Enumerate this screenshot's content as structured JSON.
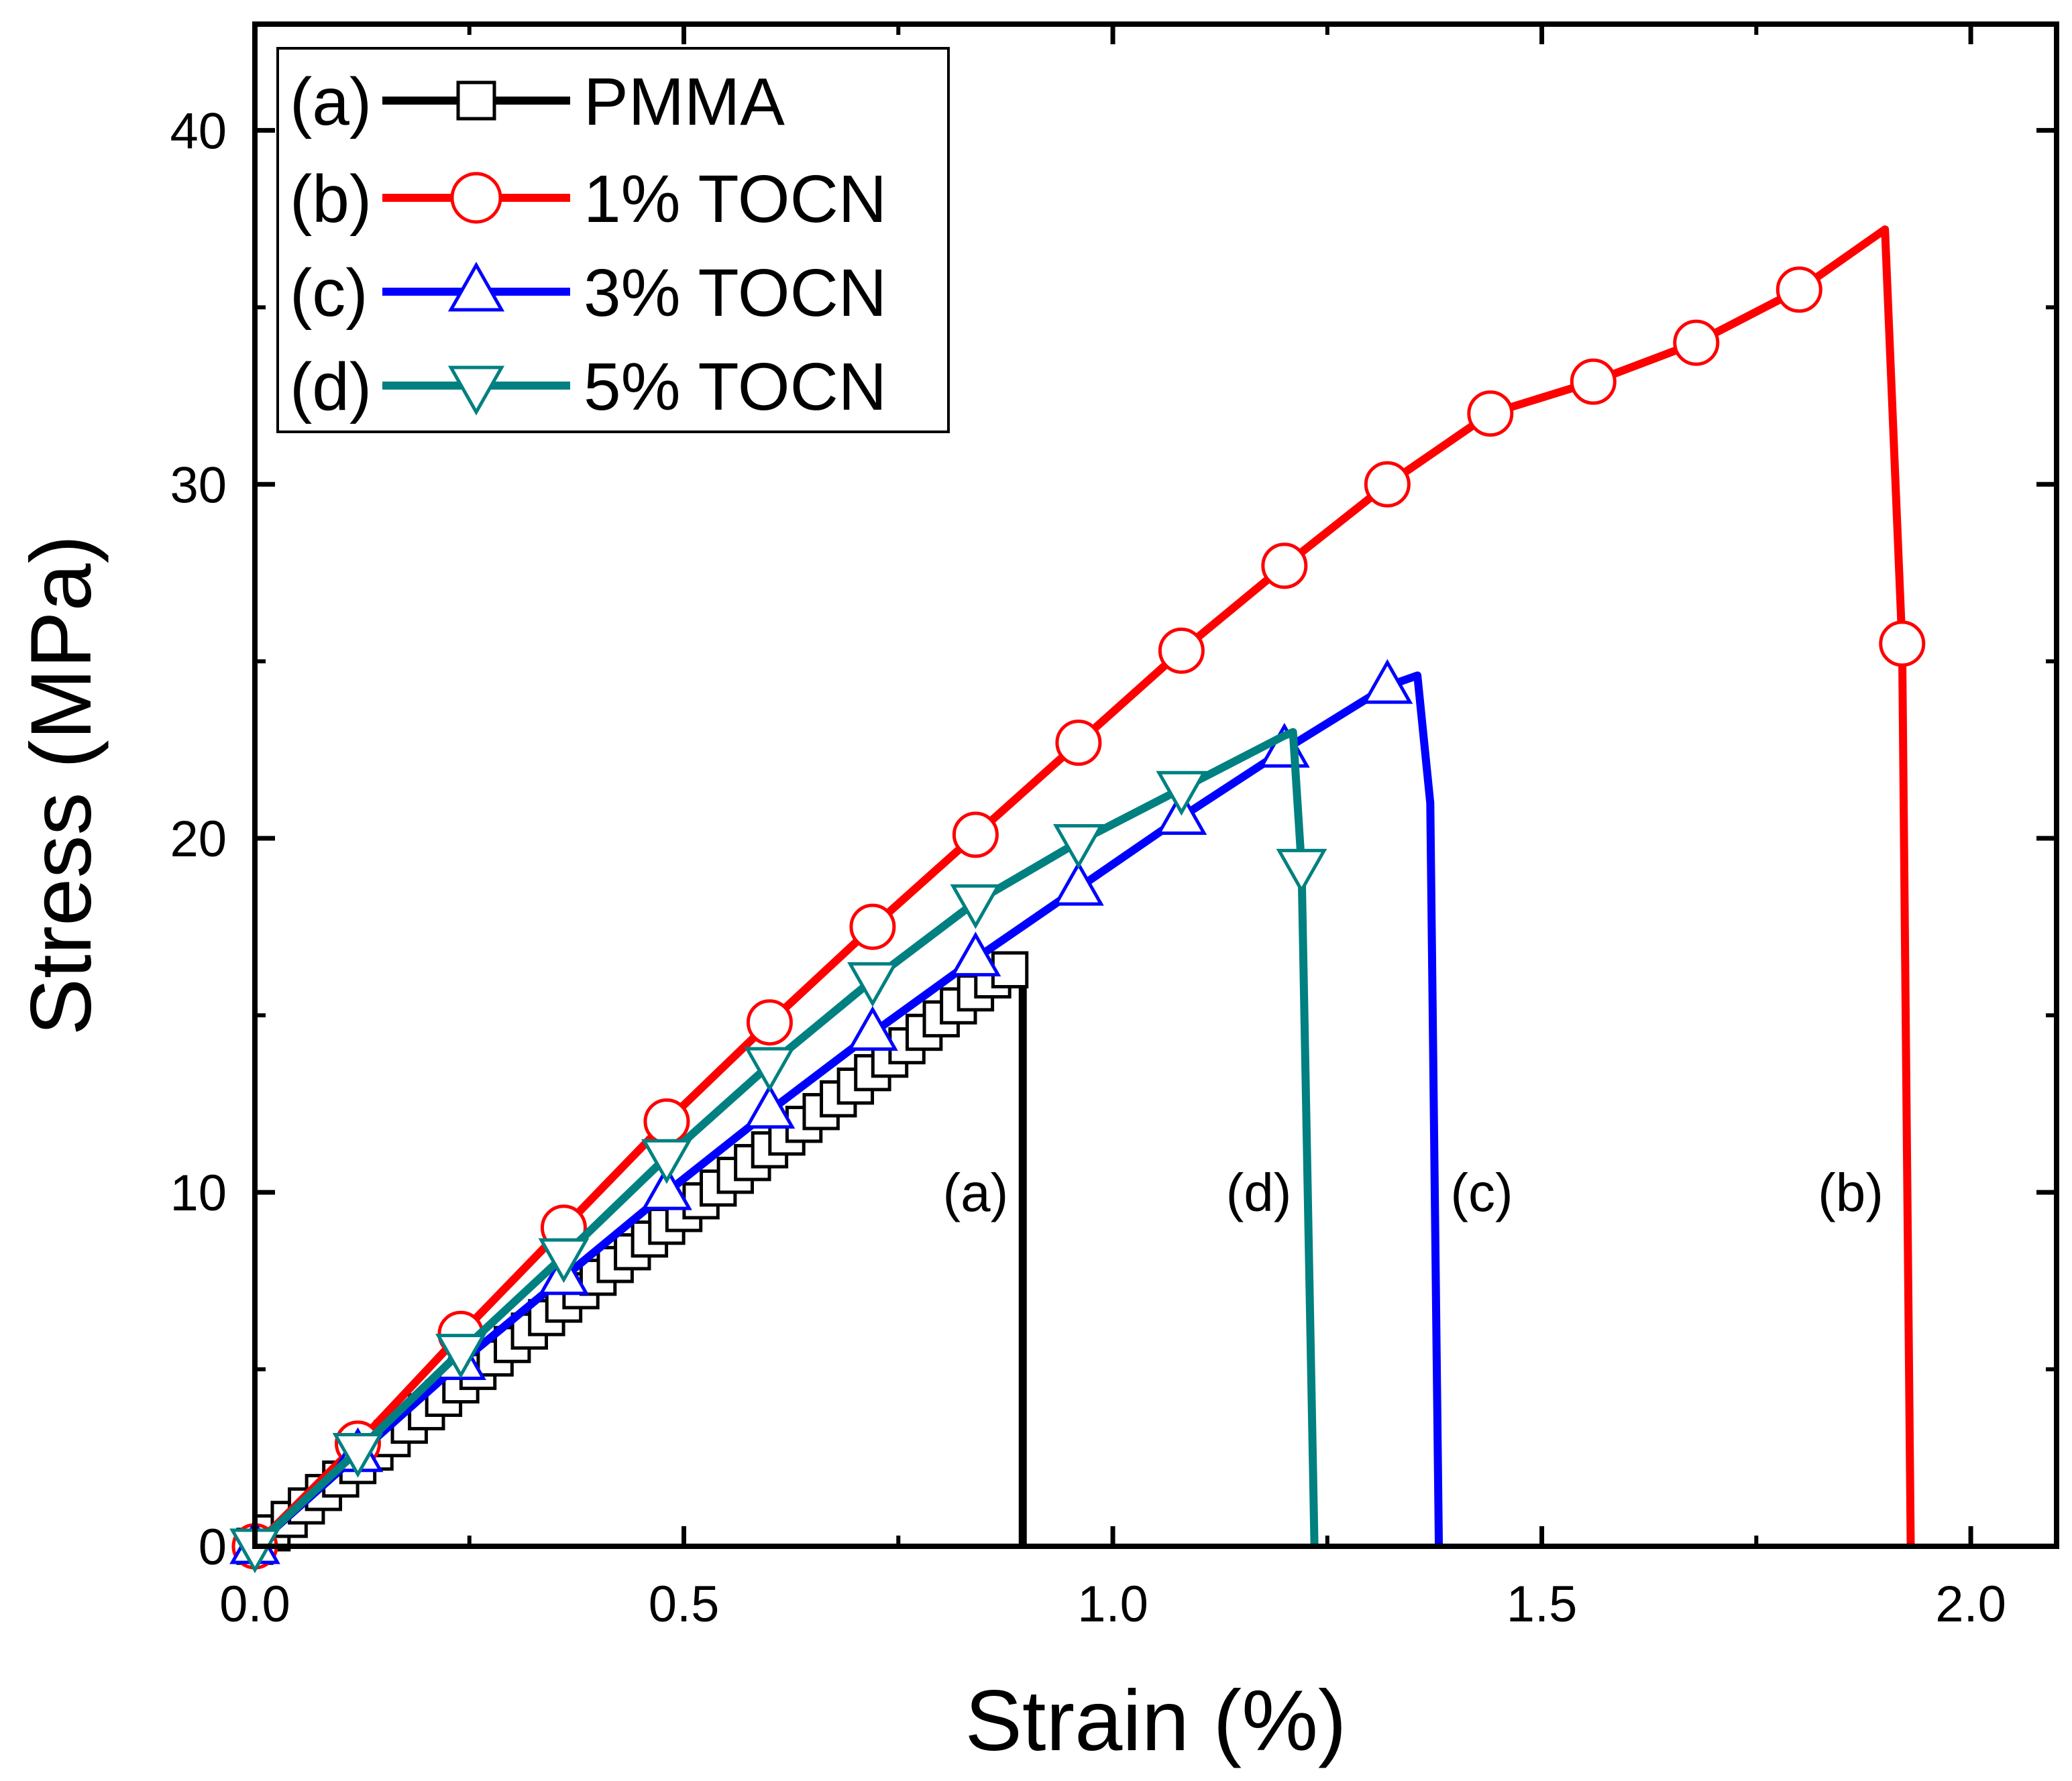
{
  "chart_data": {
    "type": "line",
    "title": "",
    "xlabel": "Strain (%)",
    "ylabel": "Stress (MPa)",
    "xlim": [
      0.0,
      2.1
    ],
    "ylim": [
      0,
      43
    ],
    "xticks": [
      0.0,
      0.5,
      1.0,
      1.5,
      2.0
    ],
    "xtick_labels": [
      "0.0",
      "0.5",
      "1.0",
      "1.5",
      "2.0"
    ],
    "yticks": [
      0,
      10,
      20,
      30,
      40
    ],
    "ytick_labels": [
      "0",
      "10",
      "20",
      "30",
      "40"
    ],
    "grid": false,
    "legend_position": "top-left",
    "series": [
      {
        "id": "a",
        "tag": "(a)",
        "name": "PMMA",
        "color": "#000000",
        "marker": "square",
        "x": [
          0.0,
          0.1,
          0.2,
          0.3,
          0.4,
          0.5,
          0.6,
          0.7,
          0.8,
          0.86,
          0.895,
          0.895
        ],
        "y": [
          0.0,
          1.9,
          3.8,
          5.7,
          7.6,
          9.4,
          11.2,
          13.0,
          14.9,
          16.0,
          16.5,
          0.0
        ],
        "marker_x": [
          0.0,
          0.02,
          0.04,
          0.06,
          0.08,
          0.1,
          0.12,
          0.14,
          0.16,
          0.18,
          0.2,
          0.22,
          0.24,
          0.26,
          0.28,
          0.3,
          0.32,
          0.34,
          0.36,
          0.38,
          0.4,
          0.42,
          0.44,
          0.46,
          0.48,
          0.5,
          0.52,
          0.54,
          0.56,
          0.58,
          0.6,
          0.62,
          0.64,
          0.66,
          0.68,
          0.7,
          0.72,
          0.74,
          0.76,
          0.78,
          0.8,
          0.82,
          0.84,
          0.86,
          0.88
        ],
        "curve_label": "(a)",
        "label_at": [
          0.84,
          10.0
        ]
      },
      {
        "id": "b",
        "tag": "(b)",
        "name": "1% TOCN",
        "color": "#ff0000",
        "marker": "circle",
        "x": [
          0.0,
          0.12,
          0.24,
          0.36,
          0.48,
          0.6,
          0.72,
          0.84,
          0.96,
          1.08,
          1.2,
          1.32,
          1.44,
          1.56,
          1.68,
          1.8,
          1.9,
          1.92,
          1.93
        ],
        "y": [
          0.0,
          2.9,
          6.0,
          9.0,
          12.0,
          14.8,
          17.5,
          20.1,
          22.7,
          25.3,
          27.7,
          30.0,
          32.0,
          32.9,
          34.0,
          35.5,
          37.2,
          25.5,
          0.0
        ],
        "marker_x": [
          0.0,
          0.12,
          0.24,
          0.36,
          0.48,
          0.6,
          0.72,
          0.84,
          0.96,
          1.08,
          1.2,
          1.32,
          1.44,
          1.56,
          1.68,
          1.8,
          1.92
        ],
        "marker_y": [
          0.0,
          2.9,
          6.0,
          9.0,
          12.0,
          14.8,
          17.5,
          20.1,
          22.7,
          25.3,
          27.7,
          30.0,
          32.0,
          32.9,
          34.0,
          35.5,
          25.5
        ],
        "curve_label": "(b)",
        "label_at": [
          1.86,
          10.0
        ]
      },
      {
        "id": "c",
        "tag": "(c)",
        "name": "3% TOCN",
        "color": "#0000ff",
        "marker": "triangle-up",
        "x": [
          0.0,
          0.12,
          0.24,
          0.36,
          0.48,
          0.6,
          0.72,
          0.84,
          0.96,
          1.08,
          1.2,
          1.32,
          1.355,
          1.37,
          1.38
        ],
        "y": [
          0.0,
          2.6,
          5.2,
          7.6,
          10.0,
          12.3,
          14.5,
          16.6,
          18.6,
          20.6,
          22.5,
          24.3,
          24.6,
          21.0,
          0.0
        ],
        "marker_x": [
          0.0,
          0.12,
          0.24,
          0.36,
          0.48,
          0.6,
          0.72,
          0.84,
          0.96,
          1.08,
          1.2,
          1.32
        ],
        "marker_y": [
          0.0,
          2.6,
          5.2,
          7.6,
          10.0,
          12.3,
          14.5,
          16.6,
          18.6,
          20.6,
          22.5,
          24.3
        ],
        "curve_label": "(c)",
        "label_at": [
          1.43,
          10.0
        ]
      },
      {
        "id": "d",
        "tag": "(d)",
        "name": "5% TOCN",
        "color": "#008080",
        "marker": "triangle-down",
        "x": [
          0.0,
          0.12,
          0.24,
          0.36,
          0.48,
          0.6,
          0.72,
          0.84,
          0.96,
          1.08,
          1.2,
          1.21,
          1.22,
          1.235
        ],
        "y": [
          0.0,
          2.7,
          5.5,
          8.2,
          11.0,
          13.6,
          16.0,
          18.2,
          19.9,
          21.4,
          22.9,
          23.0,
          19.2,
          0.0
        ],
        "marker_x": [
          0.0,
          0.12,
          0.24,
          0.36,
          0.48,
          0.6,
          0.72,
          0.84,
          0.96,
          1.08,
          1.22
        ],
        "marker_y": [
          0.0,
          2.7,
          5.5,
          8.2,
          11.0,
          13.6,
          16.0,
          18.2,
          19.9,
          21.4,
          19.2
        ],
        "curve_label": "(d)",
        "label_at": [
          1.17,
          10.0
        ]
      }
    ]
  }
}
